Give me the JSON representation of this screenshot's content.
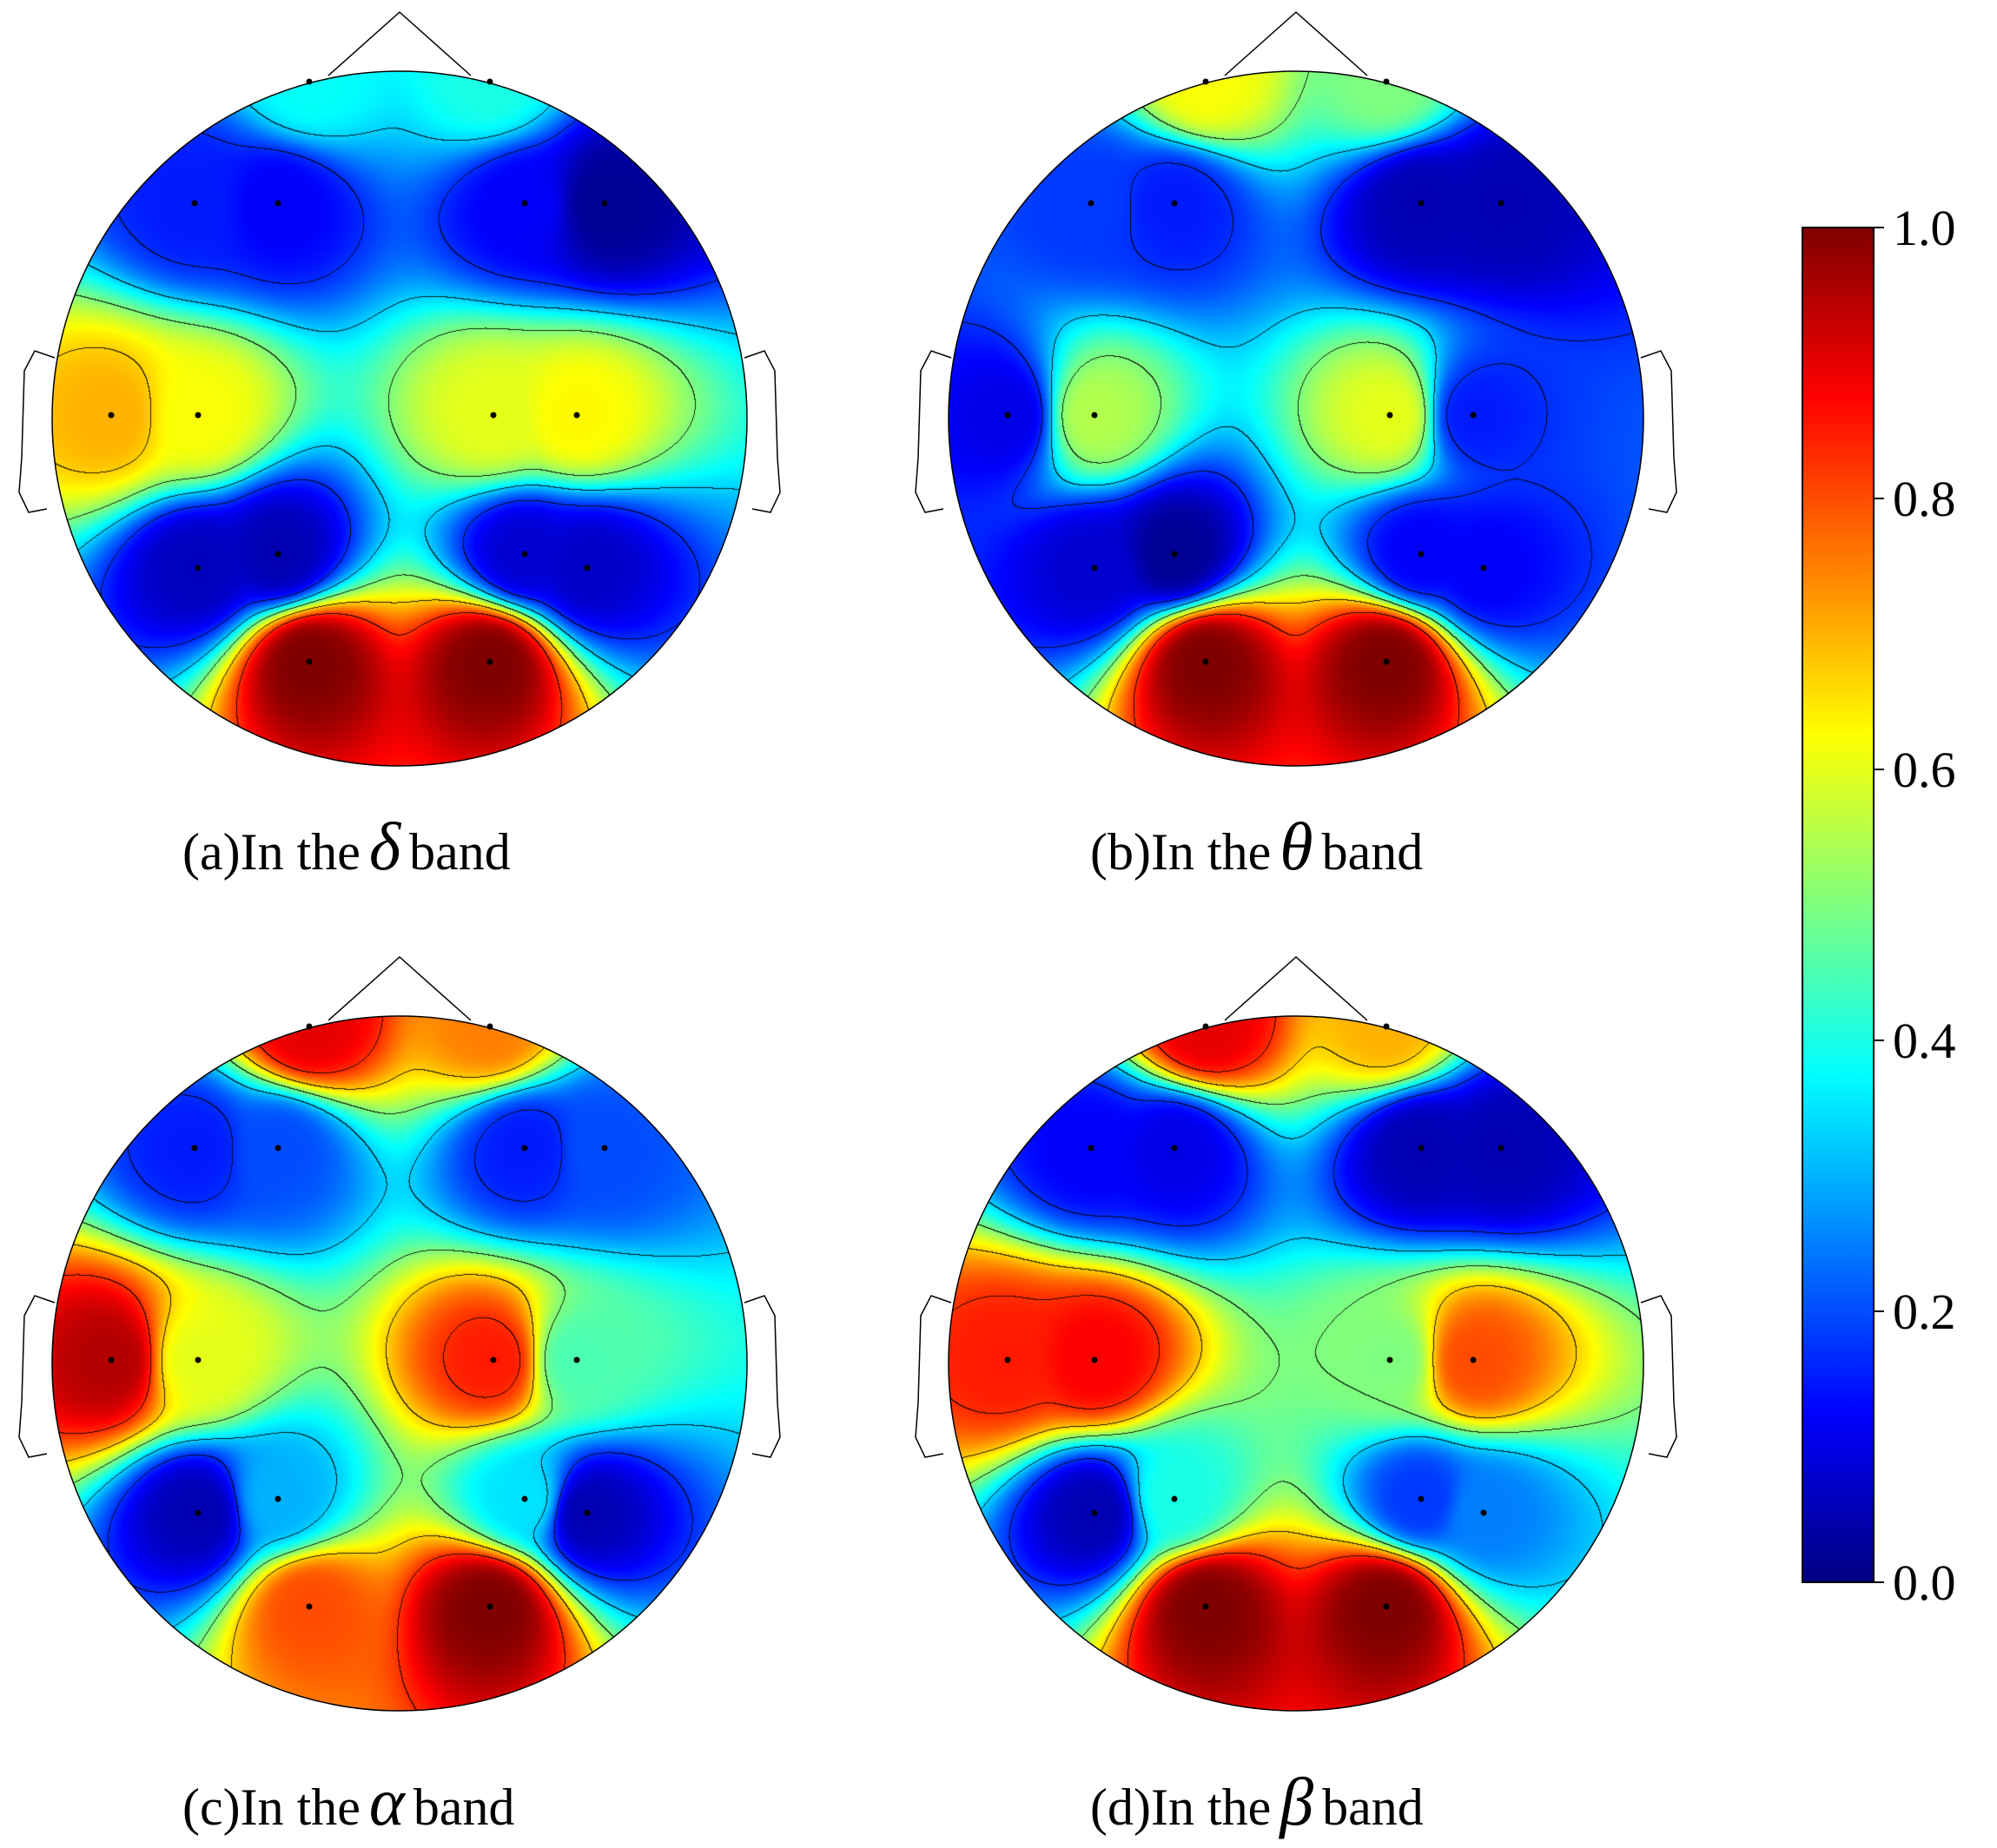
{
  "colormap": {
    "name": "jet",
    "stops": [
      "#00007f",
      "#0000ff",
      "#007fff",
      "#00ffff",
      "#7fff7f",
      "#ffff00",
      "#ff7f00",
      "#ff0000",
      "#7f0000"
    ]
  },
  "colorbar": {
    "min": 0.0,
    "max": 1.0,
    "tick_labels": [
      "0.0",
      "0.2",
      "0.4",
      "0.6",
      "0.8",
      "1.0"
    ]
  },
  "chart_data": [
    {
      "type": "heatmap",
      "subtype": "scalp-topography",
      "caption": {
        "prefix": "(a)In the",
        "symbol": "δ",
        "suffix": "band"
      },
      "electrodes": [
        {
          "x": -0.26,
          "y": 0.97,
          "value": 0.38
        },
        {
          "x": 0.26,
          "y": 0.97,
          "value": 0.4
        },
        {
          "x": -0.59,
          "y": 0.62,
          "value": 0.15
        },
        {
          "x": -0.35,
          "y": 0.62,
          "value": 0.12
        },
        {
          "x": 0.36,
          "y": 0.62,
          "value": 0.12
        },
        {
          "x": 0.59,
          "y": 0.62,
          "value": 0.02
        },
        {
          "x": -0.83,
          "y": 0.01,
          "value": 0.7
        },
        {
          "x": -0.58,
          "y": 0.01,
          "value": 0.62
        },
        {
          "x": 0.27,
          "y": 0.01,
          "value": 0.6
        },
        {
          "x": 0.51,
          "y": 0.01,
          "value": 0.63
        },
        {
          "x": -0.58,
          "y": -0.43,
          "value": 0.06
        },
        {
          "x": -0.35,
          "y": -0.39,
          "value": 0.05
        },
        {
          "x": 0.36,
          "y": -0.39,
          "value": 0.08
        },
        {
          "x": 0.54,
          "y": -0.43,
          "value": 0.07
        },
        {
          "x": -0.26,
          "y": -0.7,
          "value": 1.0
        },
        {
          "x": 0.26,
          "y": -0.7,
          "value": 1.0
        }
      ]
    },
    {
      "type": "heatmap",
      "subtype": "scalp-topography",
      "caption": {
        "prefix": "(b)In the",
        "symbol": "θ",
        "suffix": "band"
      },
      "electrodes": [
        {
          "x": -0.26,
          "y": 0.97,
          "value": 0.62
        },
        {
          "x": 0.26,
          "y": 0.97,
          "value": 0.5
        },
        {
          "x": -0.59,
          "y": 0.62,
          "value": 0.18
        },
        {
          "x": -0.35,
          "y": 0.62,
          "value": 0.15
        },
        {
          "x": 0.36,
          "y": 0.62,
          "value": 0.05
        },
        {
          "x": 0.59,
          "y": 0.62,
          "value": 0.05
        },
        {
          "x": -0.83,
          "y": 0.01,
          "value": 0.1
        },
        {
          "x": -0.58,
          "y": 0.01,
          "value": 0.55
        },
        {
          "x": 0.27,
          "y": 0.01,
          "value": 0.6
        },
        {
          "x": 0.51,
          "y": 0.01,
          "value": 0.15
        },
        {
          "x": -0.58,
          "y": -0.43,
          "value": 0.08
        },
        {
          "x": -0.35,
          "y": -0.39,
          "value": 0.02
        },
        {
          "x": 0.36,
          "y": -0.39,
          "value": 0.12
        },
        {
          "x": 0.54,
          "y": -0.43,
          "value": 0.12
        },
        {
          "x": -0.26,
          "y": -0.7,
          "value": 1.0
        },
        {
          "x": 0.26,
          "y": -0.7,
          "value": 1.0
        }
      ]
    },
    {
      "type": "heatmap",
      "subtype": "scalp-topography",
      "caption": {
        "prefix": "(c)In the",
        "symbol": "α",
        "suffix": "band"
      },
      "electrodes": [
        {
          "x": -0.26,
          "y": 0.97,
          "value": 0.9
        },
        {
          "x": 0.26,
          "y": 0.97,
          "value": 0.75
        },
        {
          "x": -0.59,
          "y": 0.62,
          "value": 0.15
        },
        {
          "x": -0.35,
          "y": 0.62,
          "value": 0.2
        },
        {
          "x": 0.36,
          "y": 0.62,
          "value": 0.15
        },
        {
          "x": 0.59,
          "y": 0.62,
          "value": 0.2
        },
        {
          "x": -0.83,
          "y": 0.01,
          "value": 0.95
        },
        {
          "x": -0.58,
          "y": 0.01,
          "value": 0.6
        },
        {
          "x": 0.27,
          "y": 0.01,
          "value": 0.85
        },
        {
          "x": 0.51,
          "y": 0.01,
          "value": 0.45
        },
        {
          "x": -0.58,
          "y": -0.43,
          "value": 0.05
        },
        {
          "x": -0.35,
          "y": -0.39,
          "value": 0.3
        },
        {
          "x": 0.36,
          "y": -0.39,
          "value": 0.35
        },
        {
          "x": 0.54,
          "y": -0.43,
          "value": 0.05
        },
        {
          "x": -0.26,
          "y": -0.7,
          "value": 0.8
        },
        {
          "x": 0.26,
          "y": -0.7,
          "value": 1.0
        }
      ]
    },
    {
      "type": "heatmap",
      "subtype": "scalp-topography",
      "caption": {
        "prefix": "(d)In the",
        "symbol": "β",
        "suffix": "band"
      },
      "electrodes": [
        {
          "x": -0.26,
          "y": 0.97,
          "value": 0.9
        },
        {
          "x": 0.26,
          "y": 0.97,
          "value": 0.7
        },
        {
          "x": -0.59,
          "y": 0.62,
          "value": 0.12
        },
        {
          "x": -0.35,
          "y": 0.62,
          "value": 0.1
        },
        {
          "x": 0.36,
          "y": 0.62,
          "value": 0.05
        },
        {
          "x": 0.59,
          "y": 0.62,
          "value": 0.05
        },
        {
          "x": -0.83,
          "y": 0.01,
          "value": 0.85
        },
        {
          "x": -0.58,
          "y": 0.01,
          "value": 0.88
        },
        {
          "x": 0.27,
          "y": 0.01,
          "value": 0.5
        },
        {
          "x": 0.51,
          "y": 0.01,
          "value": 0.8
        },
        {
          "x": -0.58,
          "y": -0.43,
          "value": 0.05
        },
        {
          "x": -0.35,
          "y": -0.39,
          "value": 0.4
        },
        {
          "x": 0.36,
          "y": -0.39,
          "value": 0.18
        },
        {
          "x": 0.54,
          "y": -0.43,
          "value": 0.25
        },
        {
          "x": -0.26,
          "y": -0.7,
          "value": 1.0
        },
        {
          "x": 0.26,
          "y": -0.7,
          "value": 1.0
        }
      ]
    }
  ]
}
